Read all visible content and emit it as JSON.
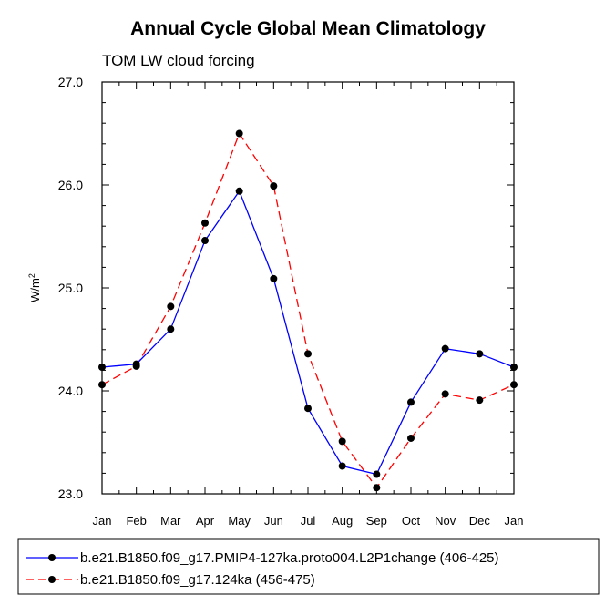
{
  "chart_data": {
    "type": "line",
    "title": "Annual Cycle Global Mean Climatology",
    "subtitle": "TOM LW cloud forcing",
    "ylabel": "W/m",
    "ylabel_sup": "2",
    "xlabel": "",
    "categories": [
      "Jan",
      "Feb",
      "Mar",
      "Apr",
      "May",
      "Jun",
      "Jul",
      "Aug",
      "Sep",
      "Oct",
      "Nov",
      "Dec",
      "Jan"
    ],
    "ylim": [
      23.0,
      27.0
    ],
    "yticks": [
      "23.0",
      "24.0",
      "25.0",
      "26.0",
      "27.0"
    ],
    "series": [
      {
        "name": "b.e21.B1850.f09_g17.PMIP4-127ka.proto004.L2P1change (406-425)",
        "color": "#0000ff",
        "dash": "solid",
        "values": [
          24.23,
          24.26,
          24.6,
          25.46,
          25.94,
          25.09,
          23.83,
          23.27,
          23.19,
          23.89,
          24.41,
          24.36,
          24.23
        ]
      },
      {
        "name": "b.e21.B1850.f09_g17.124ka (456-475)",
        "color": "#ff0000",
        "dash": "dashed",
        "values": [
          24.06,
          24.24,
          24.82,
          25.63,
          26.5,
          25.99,
          24.36,
          23.51,
          23.06,
          23.54,
          23.97,
          23.91,
          24.06
        ]
      }
    ],
    "legend_position": "bottom",
    "grid": false
  }
}
